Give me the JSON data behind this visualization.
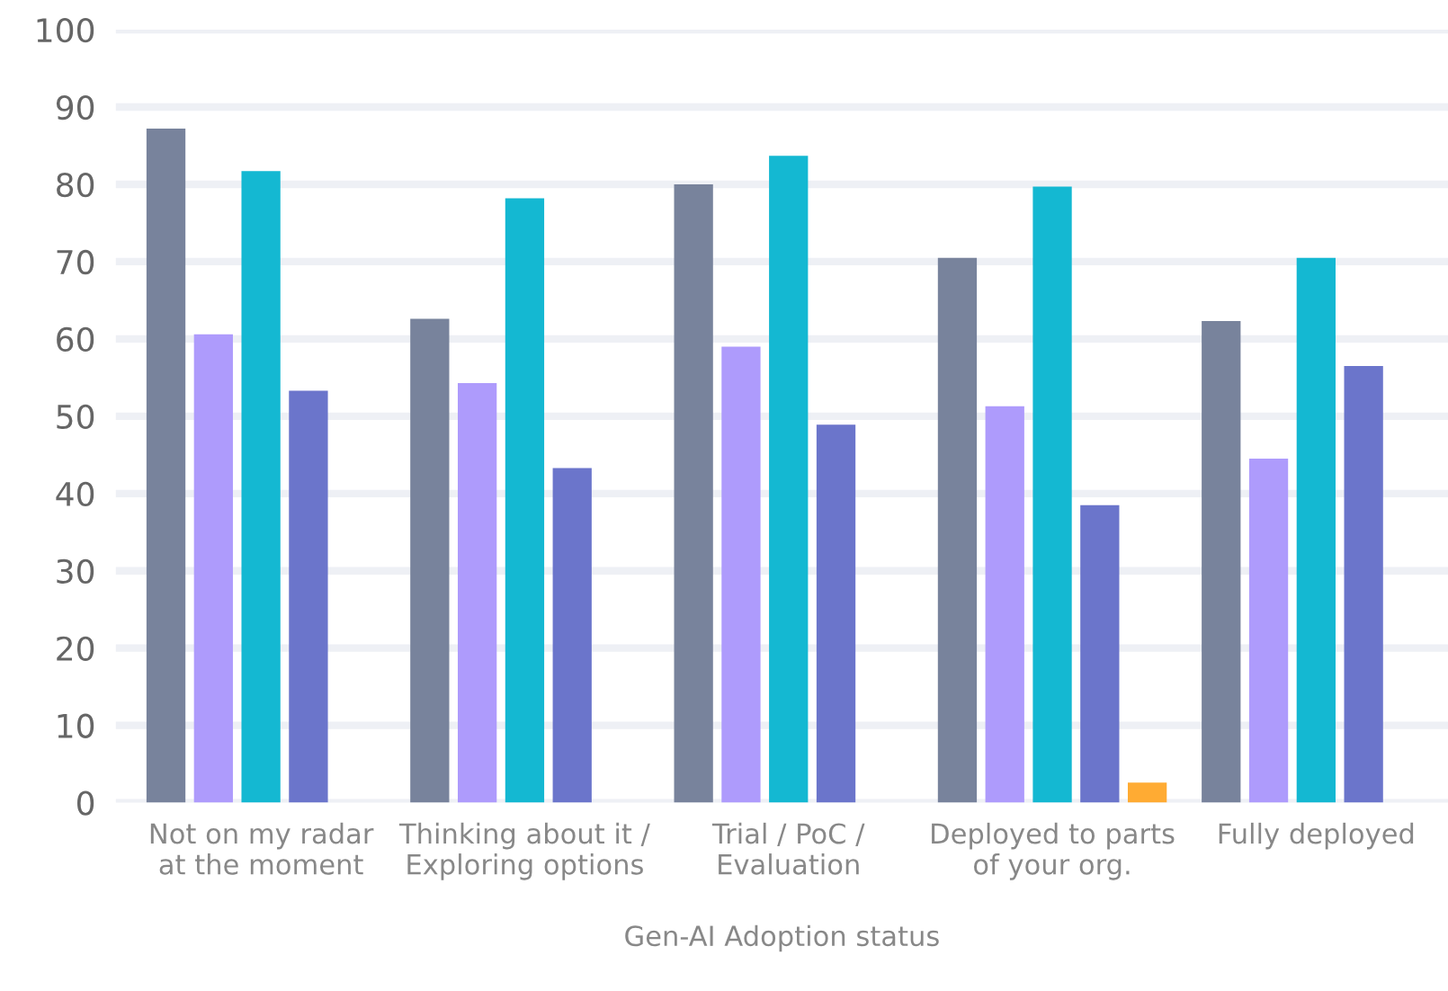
{
  "chart_data": {
    "type": "bar",
    "xlabel": "Gen-AI Adoption status",
    "categories": [
      "Not on my radar\nat the moment",
      "Thinking about it /\nExploring options",
      "Trial / PoC /\nEvaluation",
      "Deployed to parts\nof your org.",
      "Fully deployed"
    ],
    "series": [
      {
        "color": "#78839c",
        "values": [
          87.2,
          62.6,
          80.0,
          70.5,
          62.3
        ]
      },
      {
        "color": "#ae9bfc",
        "values": [
          60.6,
          54.3,
          59.0,
          51.3,
          44.5
        ]
      },
      {
        "color": "#14b8d2",
        "values": [
          81.7,
          78.2,
          83.7,
          79.7,
          70.5
        ]
      },
      {
        "color": "#6b75cb",
        "values": [
          53.3,
          43.3,
          48.9,
          38.5,
          56.5
        ]
      },
      {
        "color": "#ffab33",
        "values": [
          null,
          null,
          null,
          2.6,
          null
        ]
      }
    ],
    "ylim": [
      0,
      100
    ],
    "yticks": [
      0,
      10,
      20,
      30,
      40,
      50,
      60,
      70,
      80,
      90,
      100
    ],
    "grid": "y",
    "legend": false
  }
}
